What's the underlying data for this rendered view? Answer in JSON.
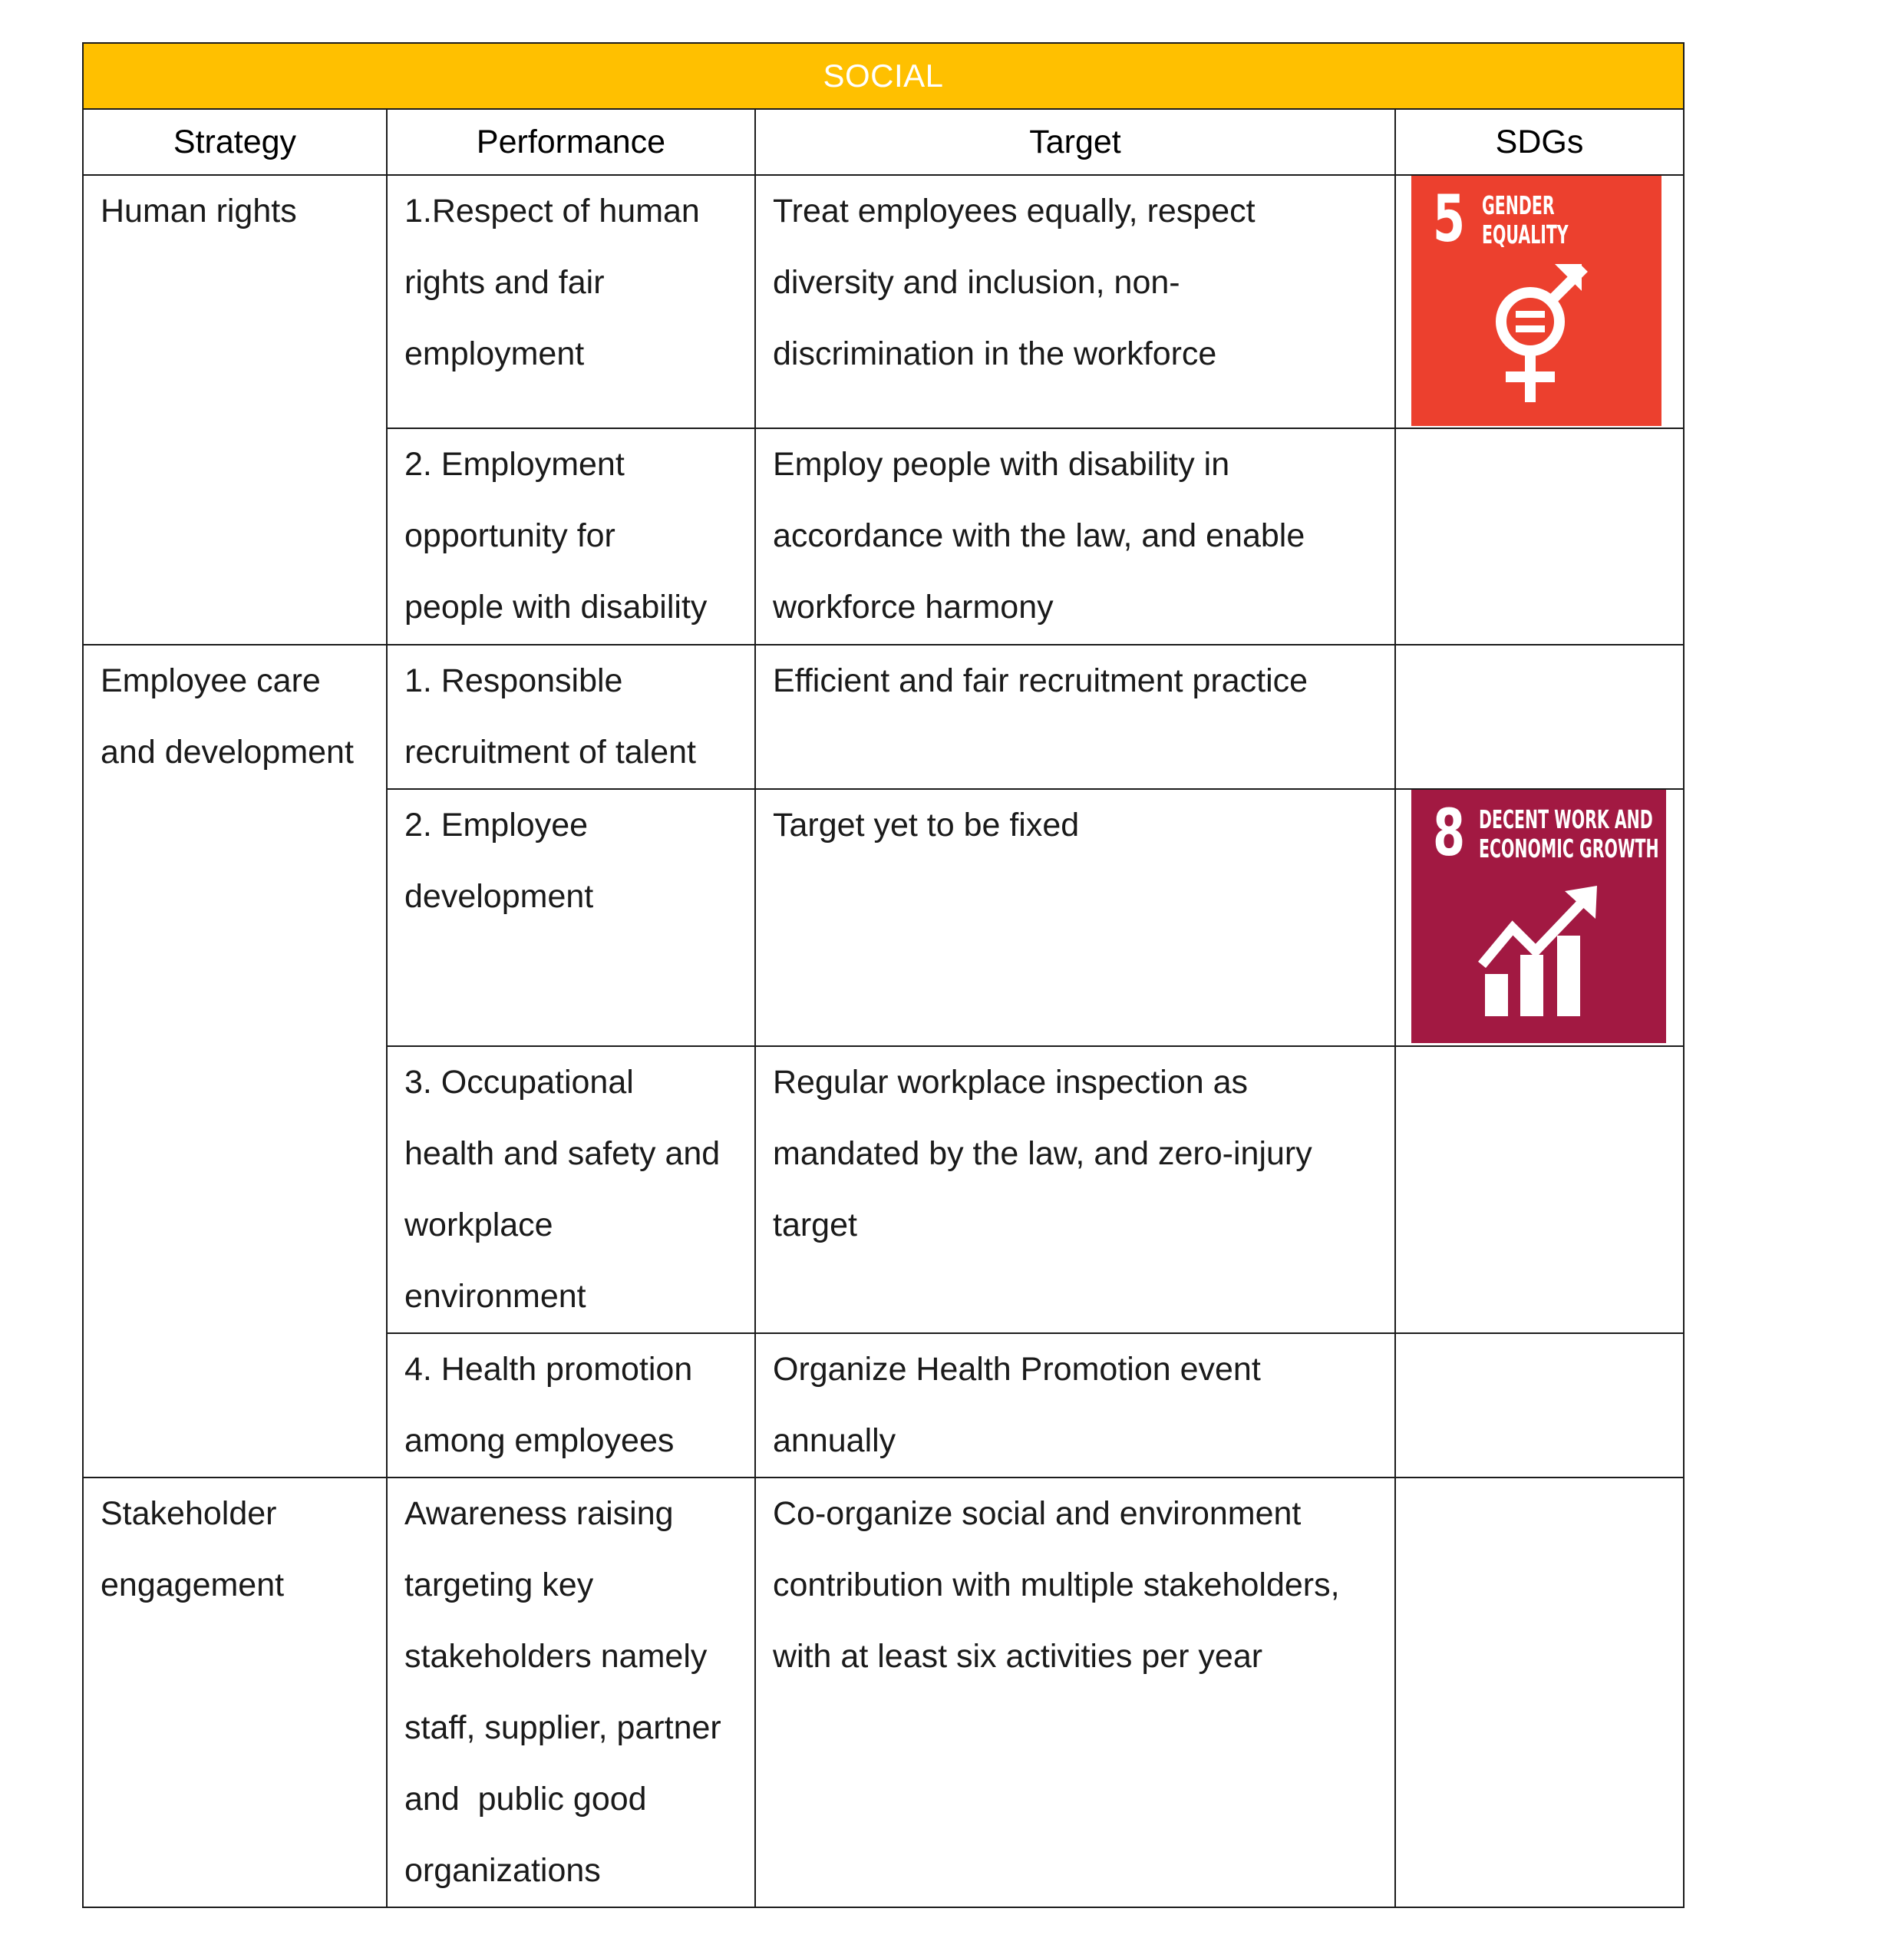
{
  "title": "SOCIAL",
  "headers": {
    "strategy": "Strategy",
    "performance": "Performance",
    "target": "Target",
    "sdgs": "SDGs"
  },
  "strategies": {
    "human_rights": [
      "Human rights"
    ],
    "employee_care": [
      "Employee care",
      "and development"
    ],
    "stakeholder": [
      "Stakeholder",
      "engagement"
    ]
  },
  "rows": [
    {
      "performance": [
        "1.Respect of human",
        "rights and fair",
        "employment"
      ],
      "target": [
        "Treat employees equally, respect",
        "diversity and inclusion, non-",
        "discrimination in the workforce"
      ]
    },
    {
      "performance": [
        "2. Employment",
        "opportunity for",
        "people with disability"
      ],
      "target": [
        "Employ people with disability in",
        "accordance with the law, and enable",
        "workforce harmony"
      ]
    },
    {
      "performance": [
        "1. Responsible",
        "recruitment of talent"
      ],
      "target": [
        "Efficient and fair recruitment practice"
      ]
    },
    {
      "performance": [
        "2. Employee",
        "development"
      ],
      "target": [
        "Target yet to be fixed"
      ]
    },
    {
      "performance": [
        "3. Occupational",
        "health and safety and",
        "workplace",
        "environment"
      ],
      "target": [
        "Regular workplace inspection as",
        "mandated by the law, and zero-injury",
        "target"
      ]
    },
    {
      "performance": [
        "4. Health promotion",
        "among employees"
      ],
      "target": [
        "Organize Health Promotion event",
        "annually"
      ]
    },
    {
      "performance": [
        "Awareness raising",
        "targeting key",
        "stakeholders namely",
        "staff, supplier, partner",
        "and  public good",
        "organizations"
      ],
      "target": [
        "Co-organize social and environment",
        "contribution with multiple stakeholders,",
        "with at least six activities per year"
      ]
    }
  ],
  "sdg_badges": {
    "gender": {
      "number": "5",
      "title": [
        "GENDER",
        "EQUALITY"
      ],
      "color": "#ec402e",
      "icon": "gender-equality-icon"
    },
    "decent_work": {
      "number": "8",
      "title": [
        "DECENT WORK AND",
        "ECONOMIC GROWTH"
      ],
      "color": "#a21942",
      "icon": "growth-chart-icon"
    }
  },
  "colors": {
    "header_band": "#ffc000",
    "border": "#1c1c1c"
  }
}
